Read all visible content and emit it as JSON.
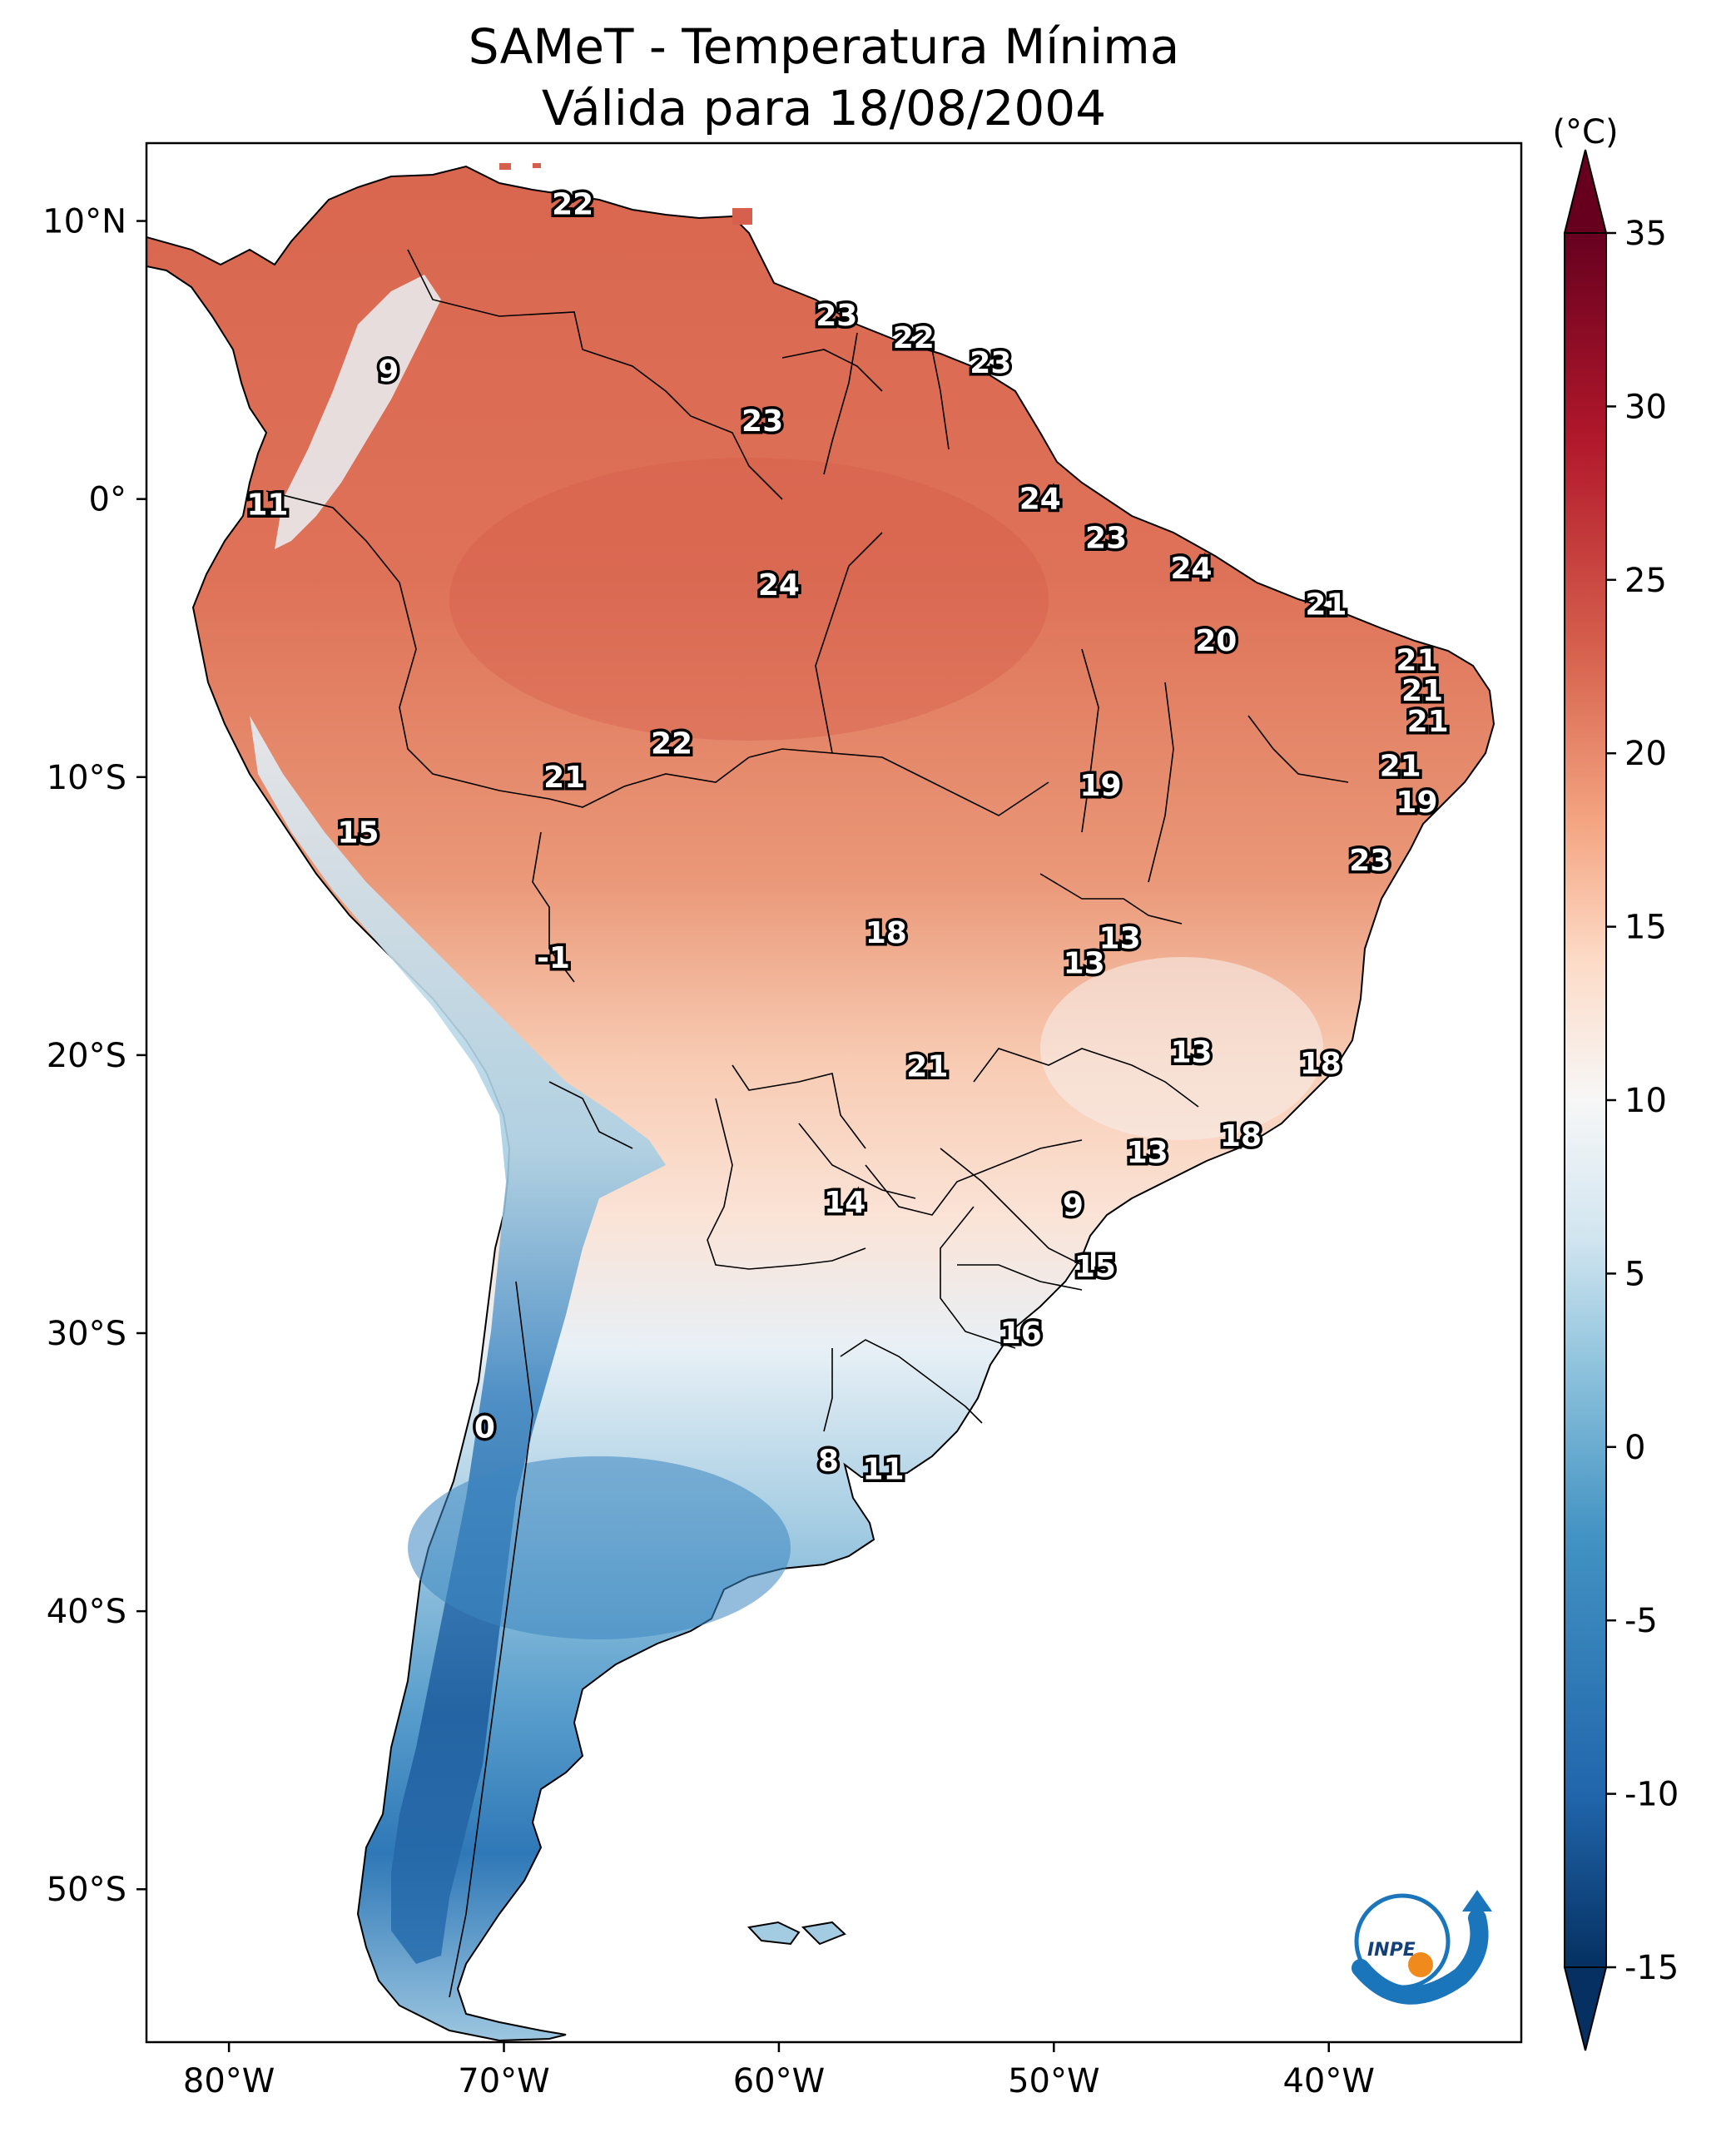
{
  "title": {
    "line1": "SAMeT - Temperatura Mínima",
    "line2": "Válida para 18/08/2004"
  },
  "map": {
    "lon_range": [
      -83,
      -33
    ],
    "lat_range": [
      -55.5,
      12.8
    ],
    "x_ticks": [
      {
        "lon": -80,
        "label": "80°W"
      },
      {
        "lon": -70,
        "label": "70°W"
      },
      {
        "lon": -60,
        "label": "60°W"
      },
      {
        "lon": -50,
        "label": "50°W"
      },
      {
        "lon": -40,
        "label": "40°W"
      }
    ],
    "y_ticks": [
      {
        "lat": 10,
        "label": "10°N"
      },
      {
        "lat": 0,
        "label": "0°"
      },
      {
        "lat": -10,
        "label": "10°S"
      },
      {
        "lat": -20,
        "label": "20°S"
      },
      {
        "lat": -30,
        "label": "30°S"
      },
      {
        "lat": -40,
        "label": "40°S"
      },
      {
        "lat": -50,
        "label": "50°S"
      }
    ],
    "ocean_color": "#ffffff",
    "border_color": "#000000"
  },
  "colorbar": {
    "unit": "(°C)",
    "min": -15,
    "max": 35,
    "extend": "both",
    "ticks": [
      {
        "value": 35,
        "label": "35"
      },
      {
        "value": 30,
        "label": "30"
      },
      {
        "value": 25,
        "label": "25"
      },
      {
        "value": 20,
        "label": "20"
      },
      {
        "value": 15,
        "label": "15"
      },
      {
        "value": 10,
        "label": "10"
      },
      {
        "value": 5,
        "label": "5"
      },
      {
        "value": 0,
        "label": "0"
      },
      {
        "value": -5,
        "label": "-5"
      },
      {
        "value": -10,
        "label": "-10"
      },
      {
        "value": -15,
        "label": "-15"
      }
    ],
    "colormap": "RdBu_r",
    "colors": [
      "#053061",
      "#2166ac",
      "#4393c3",
      "#92c5de",
      "#d1e5f0",
      "#f7f7f7",
      "#fddbc7",
      "#f4a582",
      "#d6604d",
      "#b2182b",
      "#67001f"
    ]
  },
  "stations": [
    {
      "lon": -67.5,
      "lat": 10.6,
      "value": "22"
    },
    {
      "lon": -57.9,
      "lat": 6.6,
      "value": "23"
    },
    {
      "lon": -55.1,
      "lat": 5.8,
      "value": "22"
    },
    {
      "lon": -52.3,
      "lat": 4.9,
      "value": "23"
    },
    {
      "lon": -74.2,
      "lat": 4.6,
      "value": "9"
    },
    {
      "lon": -60.6,
      "lat": 2.8,
      "value": "23"
    },
    {
      "lon": -50.5,
      "lat": 0.0,
      "value": "24"
    },
    {
      "lon": -78.6,
      "lat": -0.2,
      "value": "11"
    },
    {
      "lon": -48.1,
      "lat": -1.4,
      "value": "23"
    },
    {
      "lon": -45.0,
      "lat": -2.5,
      "value": "24"
    },
    {
      "lon": -60.0,
      "lat": -3.1,
      "value": "24"
    },
    {
      "lon": -40.1,
      "lat": -3.8,
      "value": "21"
    },
    {
      "lon": -44.1,
      "lat": -5.1,
      "value": "20"
    },
    {
      "lon": -36.8,
      "lat": -5.8,
      "value": "21"
    },
    {
      "lon": -36.6,
      "lat": -6.9,
      "value": "21"
    },
    {
      "lon": -36.4,
      "lat": -8.0,
      "value": "21"
    },
    {
      "lon": -63.9,
      "lat": -8.8,
      "value": "22"
    },
    {
      "lon": -37.4,
      "lat": -9.6,
      "value": "21"
    },
    {
      "lon": -67.8,
      "lat": -10.0,
      "value": "21"
    },
    {
      "lon": -48.3,
      "lat": -10.3,
      "value": "19"
    },
    {
      "lon": -36.8,
      "lat": -10.9,
      "value": "19"
    },
    {
      "lon": -75.3,
      "lat": -12.0,
      "value": "15"
    },
    {
      "lon": -38.5,
      "lat": -13.0,
      "value": "23"
    },
    {
      "lon": -47.6,
      "lat": -15.8,
      "value": "13"
    },
    {
      "lon": -56.1,
      "lat": -15.6,
      "value": "18"
    },
    {
      "lon": -48.9,
      "lat": -16.7,
      "value": "13"
    },
    {
      "lon": -68.2,
      "lat": -16.5,
      "value": "-1"
    },
    {
      "lon": -45.0,
      "lat": -19.9,
      "value": "13"
    },
    {
      "lon": -54.6,
      "lat": -20.4,
      "value": "21"
    },
    {
      "lon": -40.3,
      "lat": -20.3,
      "value": "18"
    },
    {
      "lon": -43.2,
      "lat": -22.9,
      "value": "18"
    },
    {
      "lon": -46.6,
      "lat": -23.5,
      "value": "13"
    },
    {
      "lon": -49.3,
      "lat": -25.4,
      "value": "9"
    },
    {
      "lon": -57.6,
      "lat": -25.3,
      "value": "14"
    },
    {
      "lon": -48.5,
      "lat": -27.6,
      "value": "15"
    },
    {
      "lon": -51.2,
      "lat": -30.0,
      "value": "16"
    },
    {
      "lon": -70.7,
      "lat": -33.4,
      "value": "0"
    },
    {
      "lon": -58.2,
      "lat": -34.6,
      "value": "8"
    },
    {
      "lon": -56.2,
      "lat": -34.9,
      "value": "11"
    }
  ],
  "logo": {
    "text": "INPE"
  }
}
